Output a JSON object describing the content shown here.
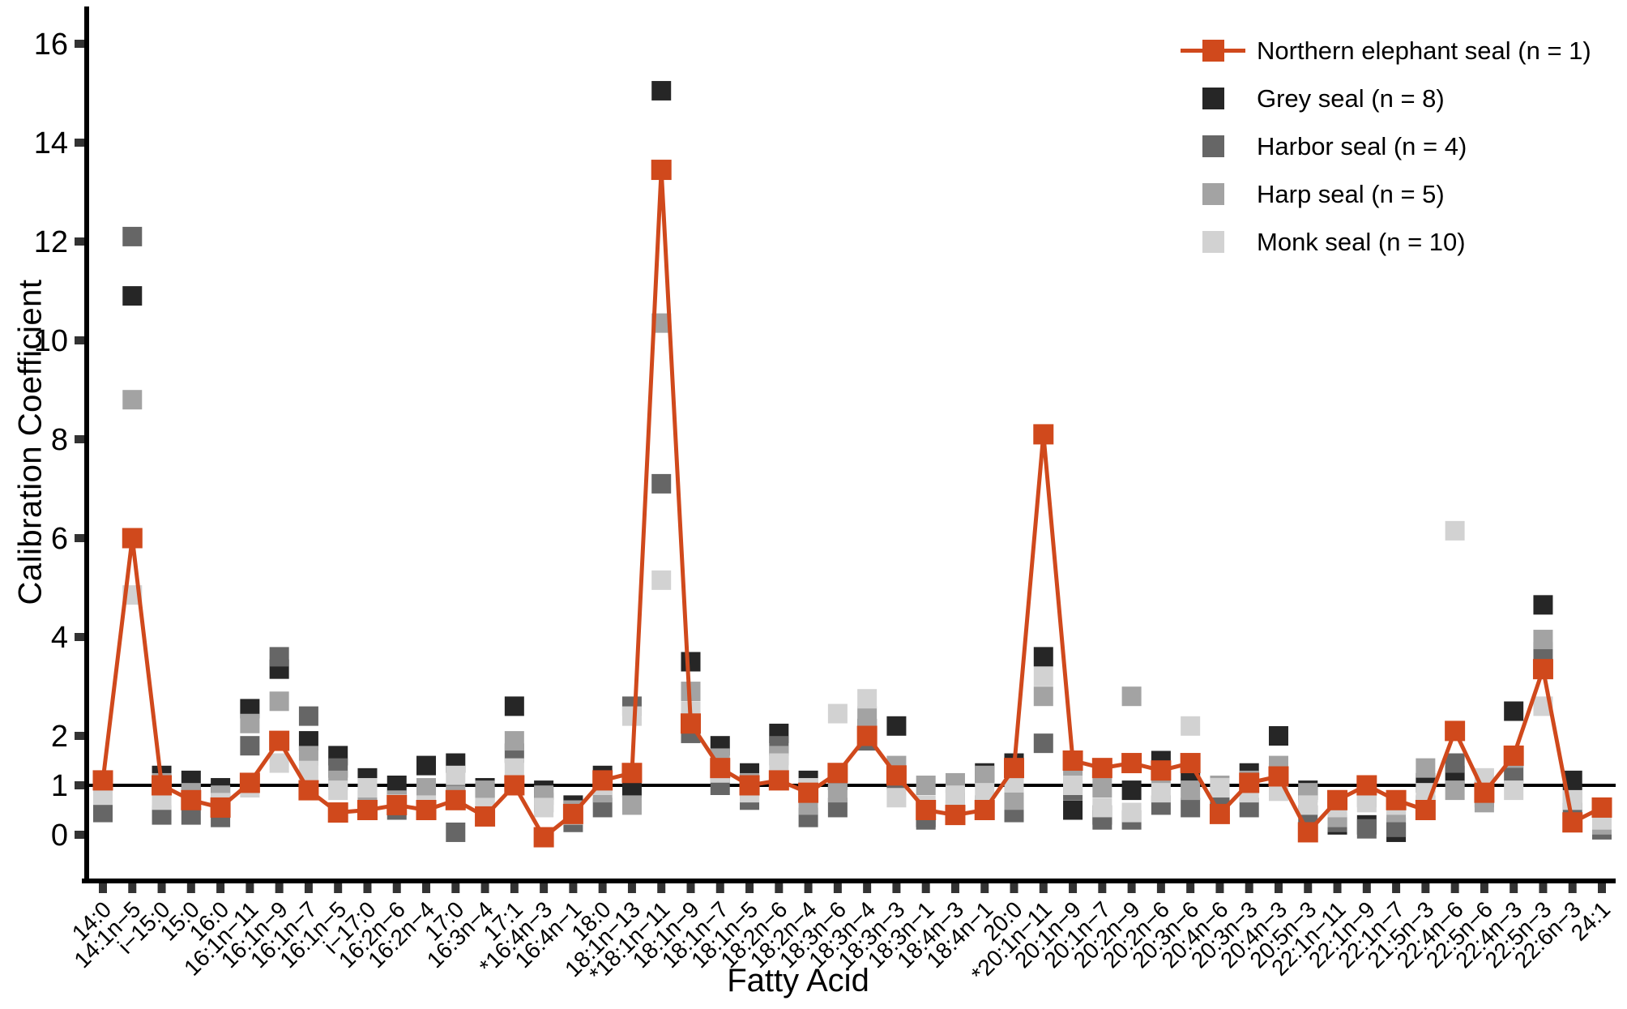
{
  "chart_data": {
    "type": "line",
    "title": "",
    "xlabel": "Fatty Acid",
    "ylabel": "Calibration Coefficient",
    "ylim": [
      -0.5,
      16.6
    ],
    "yticks": [
      0,
      1,
      2,
      4,
      6,
      8,
      10,
      12,
      14,
      16
    ],
    "reference_line_y": 1,
    "grid": false,
    "legend_position": "top-right",
    "marker_shape": "square",
    "categories": [
      "14:0",
      "14:1n−5",
      "i−15:0",
      "15:0",
      "16:0",
      "16:1n−11",
      "16:1n−9",
      "16:1n−7",
      "16:1n−5",
      "i−17:0",
      "16:2n−6",
      "16:2n−4",
      "17:0",
      "16:3n−4",
      "17:1",
      "*16:4n−3",
      "16:4n−1",
      "18:0",
      "18:1n−13",
      "*18:1n−11",
      "18:1n−9",
      "18:1n−7",
      "18:1n−5",
      "18:2n−6",
      "18:2n−4",
      "18:3n−6",
      "18:3n−4",
      "18:3n−3",
      "18:3n−1",
      "18:4n−3",
      "18:4n−1",
      "20:0",
      "*20:1n−11",
      "20:1n−9",
      "20:1n−7",
      "20:2n−9",
      "20:2n−6",
      "20:3n−6",
      "20:4n−6",
      "20:3n−3",
      "20:4n−3",
      "20:5n−3",
      "22:1n−11",
      "22:1n−9",
      "22:1n−7",
      "21:5n−3",
      "22:4n−6",
      "22:5n−6",
      "22:4n−3",
      "22:5n−3",
      "22:6n−3",
      "24:1"
    ],
    "series": [
      {
        "name": "Northern elephant seal (n = 1)",
        "color": "#D0491C",
        "style": "line+marker",
        "values": [
          1.1,
          6.0,
          1.0,
          0.7,
          0.55,
          1.05,
          1.9,
          0.9,
          0.45,
          0.5,
          0.6,
          0.5,
          0.7,
          0.37,
          1.0,
          -0.05,
          0.42,
          1.1,
          1.25,
          13.45,
          2.25,
          1.35,
          1.0,
          1.1,
          0.85,
          1.25,
          2.0,
          1.2,
          0.5,
          0.4,
          0.5,
          1.35,
          8.1,
          1.5,
          1.35,
          1.45,
          1.3,
          1.45,
          0.42,
          1.05,
          1.18,
          0.05,
          0.7,
          1.0,
          0.7,
          0.5,
          2.1,
          0.85,
          1.6,
          3.35,
          0.25,
          0.55
        ]
      },
      {
        "name": "Grey seal (n = 8)",
        "color": "#262626",
        "style": "marker",
        "values": [
          1.0,
          10.9,
          1.2,
          1.1,
          0.95,
          2.55,
          3.35,
          1.9,
          1.6,
          1.15,
          1.0,
          1.4,
          1.45,
          0.95,
          2.6,
          0.9,
          0.6,
          1.2,
          0.95,
          15.05,
          3.5,
          1.8,
          1.25,
          2.05,
          1.1,
          1.1,
          2.15,
          2.2,
          0.35,
          0.72,
          1.25,
          1.45,
          3.6,
          0.5,
          0.4,
          0.9,
          1.5,
          1.2,
          0.55,
          1.25,
          2.0,
          0.9,
          0.2,
          0.2,
          0.05,
          1.05,
          1.2,
          0.9,
          2.5,
          4.65,
          1.1,
          0.4
        ]
      },
      {
        "name": "Harbor seal (n = 4)",
        "color": "#666666",
        "style": "marker",
        "values": [
          0.45,
          12.1,
          0.4,
          0.4,
          0.35,
          1.8,
          3.6,
          2.4,
          1.35,
          0.7,
          0.5,
          0.75,
          0.05,
          0.75,
          1.65,
          0.65,
          0.25,
          0.55,
          2.6,
          7.1,
          2.05,
          1.0,
          0.7,
          1.8,
          0.35,
          0.55,
          1.9,
          1.1,
          0.3,
          0.5,
          0.6,
          0.45,
          1.85,
          0.9,
          0.3,
          0.3,
          0.6,
          0.55,
          0.7,
          0.55,
          1.25,
          0.4,
          0.25,
          0.12,
          0.15,
          0.6,
          1.45,
          0.75,
          1.25,
          3.7,
          0.45,
          0.1
        ]
      },
      {
        "name": "Harp seal (n = 5)",
        "color": "#A3A3A3",
        "style": "marker",
        "values": [
          0.9,
          8.8,
          1.05,
          0.85,
          0.8,
          2.25,
          2.7,
          1.6,
          1.1,
          0.8,
          0.7,
          0.95,
          0.8,
          0.9,
          1.9,
          0.8,
          0.5,
          0.85,
          0.6,
          10.35,
          2.9,
          1.55,
          1.05,
          1.6,
          0.6,
          0.85,
          2.4,
          1.4,
          1.0,
          1.05,
          1.2,
          0.7,
          2.8,
          1.15,
          0.95,
          2.8,
          1.2,
          0.9,
          1.0,
          1.1,
          1.4,
          0.85,
          0.35,
          0.75,
          0.45,
          1.35,
          0.9,
          0.65,
          1.55,
          3.95,
          0.7,
          0.2
        ]
      },
      {
        "name": "Monk seal (n = 10)",
        "color": "#D2D2D2",
        "style": "marker",
        "values": [
          0.8,
          4.85,
          0.7,
          0.7,
          0.65,
          0.95,
          1.45,
          1.3,
          0.9,
          0.95,
          0.62,
          0.6,
          1.2,
          0.55,
          1.35,
          0.55,
          0.4,
          1.0,
          2.4,
          5.15,
          2.5,
          1.25,
          0.85,
          1.45,
          0.95,
          2.45,
          2.75,
          0.75,
          0.6,
          0.8,
          0.85,
          1.05,
          3.2,
          1.0,
          0.55,
          0.45,
          0.85,
          2.2,
          0.95,
          0.85,
          0.88,
          0.6,
          0.55,
          0.65,
          0.6,
          0.85,
          6.15,
          1.15,
          0.9,
          2.6,
          0.7,
          0.3
        ]
      }
    ]
  }
}
